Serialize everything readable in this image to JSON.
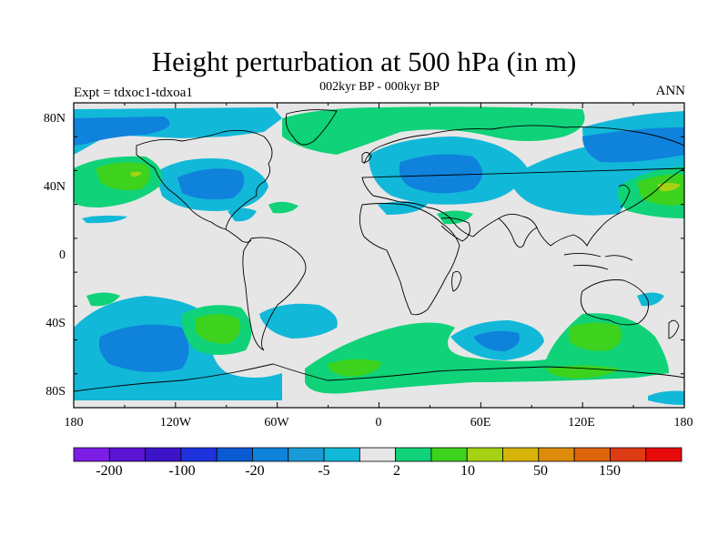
{
  "header": {
    "title": "Height perturbation at 500 hPa (in m)",
    "subtitle": "002kyr BP - 000kyr BP",
    "experiment_label": "Expt = tdxoc1-tdxoa1",
    "season_label": "ANN"
  },
  "map": {
    "projection": "cylindrical equidistant",
    "lat_ticks": [
      "80N",
      "40N",
      "0",
      "40S",
      "80S"
    ],
    "lon_ticks": [
      "180",
      "120W",
      "60W",
      "0",
      "60E",
      "120E",
      "180"
    ],
    "background_color": "#e6e6e6",
    "coastline_color": "#000000"
  },
  "colorbar": {
    "colors": [
      "#7d1ee6",
      "#5a14d2",
      "#3c14c8",
      "#1e32dc",
      "#0a5ad2",
      "#0f82dc",
      "#1a9ad6",
      "#12b8d8",
      "#e6e6e6",
      "#10d278",
      "#3cd21e",
      "#a6d214",
      "#d6b40a",
      "#dc8c0a",
      "#dc640a",
      "#dc3c14",
      "#e60a0a"
    ],
    "labels": [
      "-200",
      "-100",
      "-20",
      "-5",
      "2",
      "10",
      "50",
      "150"
    ]
  },
  "legend_levels": {
    "negative": [
      "-5 (light cyan)",
      "-20 (blue)"
    ],
    "positive": [
      "2 (green)",
      "10 (yellow-green)"
    ]
  }
}
